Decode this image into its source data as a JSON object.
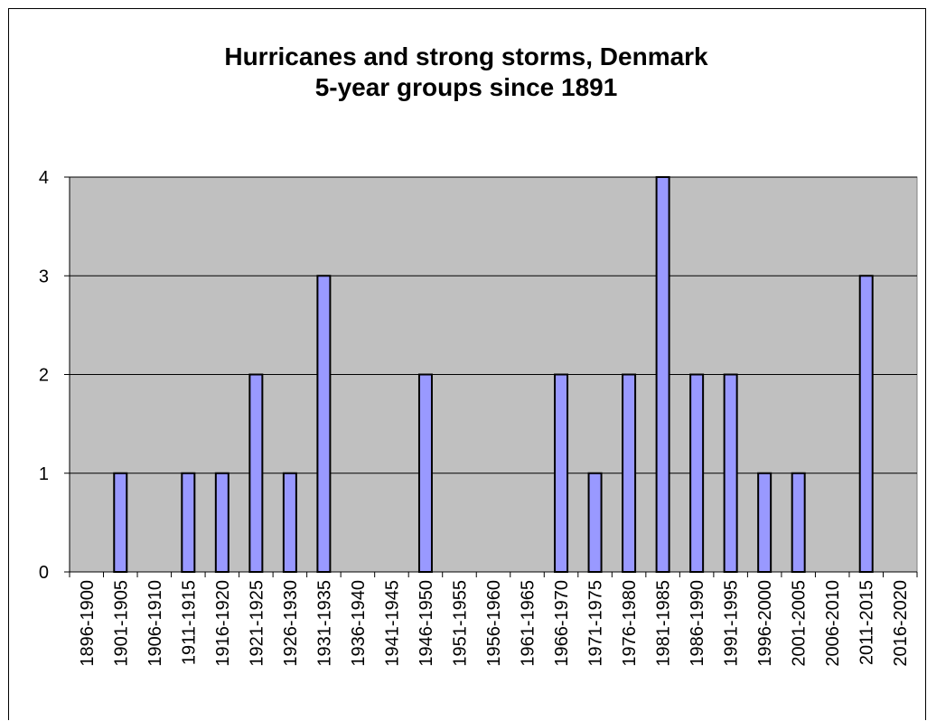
{
  "chart_data": {
    "type": "bar",
    "title_lines": [
      "Hurricanes and strong storms, Denmark",
      "5-year groups since 1891"
    ],
    "xlabel": "",
    "ylabel": "",
    "ylim": [
      0,
      4
    ],
    "yticks": [
      0,
      1,
      2,
      3,
      4
    ],
    "grid": true,
    "legend": "none",
    "plot_background": "#c0c0c0",
    "bar_color": "#9999ff",
    "bar_edge_color": "#000000",
    "categories": [
      "1896-1900",
      "1901-1905",
      "1906-1910",
      "1911-1915",
      "1916-1920",
      "1921-1925",
      "1926-1930",
      "1931-1935",
      "1936-1940",
      "1941-1945",
      "1946-1950",
      "1951-1955",
      "1956-1960",
      "1961-1965",
      "1966-1970",
      "1971-1975",
      "1976-1980",
      "1981-1985",
      "1986-1990",
      "1991-1995",
      "1996-2000",
      "2001-2005",
      "2006-2010",
      "2011-2015",
      "2016-2020"
    ],
    "values": [
      0,
      1,
      0,
      1,
      1,
      2,
      1,
      3,
      0,
      0,
      2,
      0,
      0,
      0,
      2,
      1,
      2,
      4,
      2,
      2,
      1,
      1,
      0,
      3,
      0
    ]
  }
}
